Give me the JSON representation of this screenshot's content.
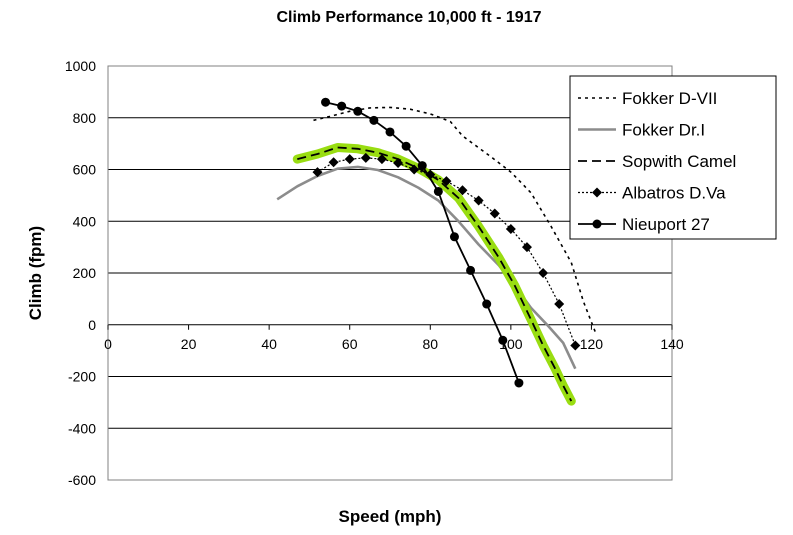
{
  "chart_data": {
    "type": "line",
    "title": "Climb Performance 10,000 ft - 1917",
    "xlabel": "Speed (mph)",
    "ylabel": "Climb (fpm)",
    "xlim": [
      0,
      140
    ],
    "ylim": [
      -600,
      1000
    ],
    "x_ticks": [
      "0",
      "20",
      "40",
      "60",
      "80",
      "100",
      "120",
      "140"
    ],
    "y_ticks": [
      "1000",
      "800",
      "600",
      "400",
      "200",
      "0",
      "-200",
      "-400",
      "-600"
    ],
    "grid": "horizontal",
    "legend_position": "right",
    "series": [
      {
        "name": "Fokker D-VII",
        "style": "dotted",
        "color": "#000000",
        "points": [
          [
            51,
            790
          ],
          [
            55,
            805
          ],
          [
            60,
            825
          ],
          [
            65,
            838
          ],
          [
            70,
            840
          ],
          [
            75,
            833
          ],
          [
            80,
            815
          ],
          [
            85,
            785
          ],
          [
            88,
            730
          ],
          [
            95,
            650
          ],
          [
            100,
            590
          ],
          [
            105,
            510
          ],
          [
            110,
            380
          ],
          [
            115,
            240
          ],
          [
            118,
            90
          ],
          [
            121,
            -30
          ]
        ]
      },
      {
        "name": "Fokker Dr.I",
        "style": "solid",
        "color": "#8c8c8c",
        "points": [
          [
            42,
            485
          ],
          [
            47,
            535
          ],
          [
            52,
            575
          ],
          [
            57,
            603
          ],
          [
            62,
            610
          ],
          [
            67,
            598
          ],
          [
            72,
            570
          ],
          [
            77,
            530
          ],
          [
            82,
            480
          ],
          [
            87,
            400
          ],
          [
            92,
            310
          ],
          [
            97,
            230
          ],
          [
            101,
            150
          ],
          [
            105,
            65
          ],
          [
            109,
            0
          ],
          [
            113,
            -70
          ],
          [
            116,
            -170
          ]
        ]
      },
      {
        "name": "Sopwith Camel",
        "style": "dashed",
        "color": "#000000",
        "highlight": "#99dd11",
        "points": [
          [
            47,
            640
          ],
          [
            52,
            660
          ],
          [
            57,
            685
          ],
          [
            62,
            680
          ],
          [
            67,
            665
          ],
          [
            72,
            640
          ],
          [
            77,
            605
          ],
          [
            82,
            560
          ],
          [
            87,
            490
          ],
          [
            92,
            380
          ],
          [
            97,
            260
          ],
          [
            101,
            150
          ],
          [
            105,
            20
          ],
          [
            108,
            -80
          ],
          [
            111,
            -170
          ],
          [
            113,
            -235
          ],
          [
            115,
            -295
          ]
        ]
      },
      {
        "name": "Albatros D.Va",
        "style": "dotted-diamond",
        "color": "#000000",
        "points": [
          [
            52,
            590
          ],
          [
            56,
            628
          ],
          [
            60,
            640
          ],
          [
            64,
            645
          ],
          [
            68,
            640
          ],
          [
            72,
            625
          ],
          [
            76,
            600
          ],
          [
            80,
            580
          ],
          [
            84,
            555
          ],
          [
            88,
            520
          ],
          [
            92,
            480
          ],
          [
            96,
            430
          ],
          [
            100,
            370
          ],
          [
            104,
            300
          ],
          [
            108,
            200
          ],
          [
            112,
            80
          ],
          [
            116,
            -80
          ]
        ]
      },
      {
        "name": "Nieuport 27",
        "style": "solid-circle",
        "color": "#000000",
        "points": [
          [
            54,
            860
          ],
          [
            58,
            845
          ],
          [
            62,
            825
          ],
          [
            66,
            790
          ],
          [
            70,
            745
          ],
          [
            74,
            690
          ],
          [
            78,
            615
          ],
          [
            82,
            515
          ],
          [
            86,
            340
          ],
          [
            90,
            210
          ],
          [
            94,
            80
          ],
          [
            98,
            -60
          ],
          [
            102,
            -225
          ]
        ]
      }
    ]
  }
}
